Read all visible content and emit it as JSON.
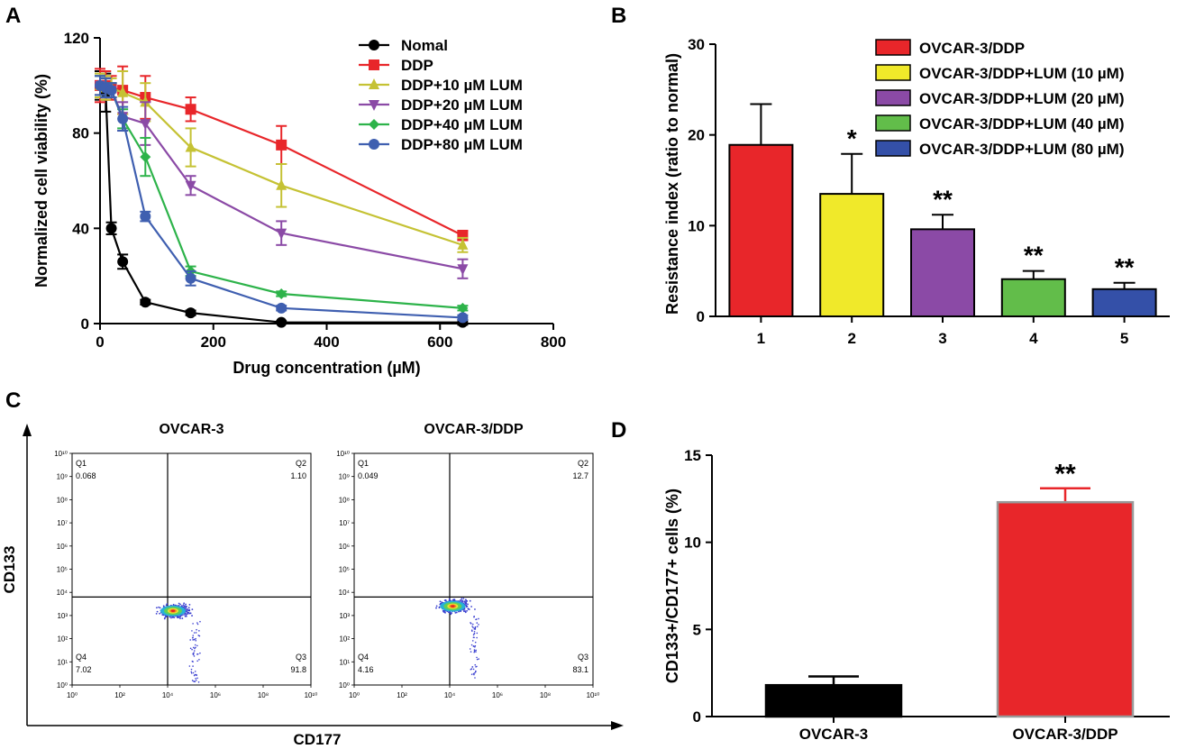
{
  "panels": {
    "A": {
      "letter": "A"
    },
    "B": {
      "letter": "B"
    },
    "C": {
      "letter": "C"
    },
    "D": {
      "letter": "D"
    }
  },
  "chart_data": [
    {
      "id": "A",
      "type": "line",
      "title": "",
      "xlabel": "Drug concentration (µM)",
      "ylabel": "Normalized cell viability (%)",
      "xlim": [
        0,
        800
      ],
      "ylim": [
        0,
        120
      ],
      "xticks": [
        0,
        200,
        400,
        600,
        800
      ],
      "yticks": [
        0,
        40,
        80,
        120
      ],
      "legend_position": "top-right",
      "series": [
        {
          "name": "Nomal",
          "color": "#000000",
          "marker": "circle",
          "x": [
            0,
            10,
            20,
            40,
            80,
            160,
            320,
            640
          ],
          "y": [
            100,
            97,
            40,
            26,
            9,
            4.5,
            0.5,
            0.5
          ],
          "err": [
            6,
            8,
            2.5,
            3,
            1,
            1,
            0.5,
            1
          ]
        },
        {
          "name": "DDP",
          "color": "#e8262a",
          "marker": "square",
          "x": [
            0,
            10,
            20,
            40,
            80,
            160,
            320,
            640
          ],
          "y": [
            100,
            100,
            99,
            98,
            95,
            90,
            75,
            37
          ],
          "err": [
            7,
            6,
            5,
            10,
            9,
            5,
            8,
            2
          ]
        },
        {
          "name": "DDP+10 µM LUM",
          "color": "#c5c234",
          "marker": "triangle-up",
          "x": [
            0,
            10,
            20,
            40,
            80,
            160,
            320,
            640
          ],
          "y": [
            100,
            99,
            99,
            97,
            93,
            74,
            58,
            33
          ],
          "err": [
            5,
            5,
            4,
            9,
            8,
            8,
            9,
            3
          ]
        },
        {
          "name": "DDP+20 µM LUM",
          "color": "#8b4aa6",
          "marker": "triangle-down",
          "x": [
            0,
            10,
            20,
            40,
            80,
            160,
            320,
            640
          ],
          "y": [
            100,
            99,
            98,
            87,
            84,
            58,
            38,
            23
          ],
          "err": [
            4,
            4,
            3,
            6,
            9,
            4,
            5,
            4
          ]
        },
        {
          "name": "DDP+40 µM LUM",
          "color": "#2db34a",
          "marker": "diamond",
          "x": [
            0,
            10,
            20,
            40,
            80,
            160,
            320,
            640
          ],
          "y": [
            100,
            99,
            98,
            86,
            70,
            22,
            12.5,
            6.5
          ],
          "err": [
            4,
            4,
            3,
            4,
            8,
            2,
            1,
            1
          ]
        },
        {
          "name": "DDP+80 µM LUM",
          "color": "#3f5fb0",
          "marker": "circle",
          "x": [
            0,
            10,
            20,
            40,
            80,
            160,
            320,
            640
          ],
          "y": [
            100,
            99,
            98,
            86,
            45,
            19,
            6.5,
            2.5
          ],
          "err": [
            4,
            4,
            3,
            5,
            2,
            3,
            1,
            1
          ]
        }
      ]
    },
    {
      "id": "B",
      "type": "bar",
      "title": "",
      "xlabel": "",
      "ylabel": "Resistance index (ratio to normal)",
      "ylim": [
        0,
        30
      ],
      "yticks": [
        0,
        10,
        20,
        30
      ],
      "categories": [
        "1",
        "2",
        "3",
        "4",
        "5"
      ],
      "values": [
        18.9,
        13.5,
        9.6,
        4.1,
        3.0
      ],
      "errors": [
        4.5,
        4.4,
        1.6,
        0.9,
        0.7
      ],
      "colors": [
        "#e8262a",
        "#f0e92a",
        "#8b4aa6",
        "#62bd4a",
        "#3450a8"
      ],
      "annotations": [
        "",
        "*",
        "**",
        "**",
        "**"
      ],
      "legend_position": "top-right",
      "legend": [
        "OVCAR-3/DDP",
        "OVCAR-3/DDP+LUM (10 µM)",
        "OVCAR-3/DDP+LUM (20 µM)",
        "OVCAR-3/DDP+LUM (40 µM)",
        "OVCAR-3/DDP+LUM (80 µM)"
      ]
    },
    {
      "id": "C",
      "type": "scatter",
      "xlabel": "CD177",
      "ylabel": "CD133",
      "axis_tick_labels": [
        "10⁰",
        "10¹",
        "10²",
        "10³",
        "10⁴",
        "10⁵",
        "10⁶",
        "10⁷",
        "10⁸",
        "10⁹",
        "10¹⁰"
      ],
      "x_tick_labels": [
        "10⁰",
        "10²",
        "10⁴",
        "10⁶",
        "10⁸",
        "10¹⁰"
      ],
      "plots": [
        {
          "title": "OVCAR-3",
          "quadrants": {
            "Q1": "0.068",
            "Q2": "1.10",
            "Q3": "91.8",
            "Q4": "7.02"
          },
          "gate_x_log": 4.0,
          "gate_y_log": 3.8,
          "cluster_center_log": [
            4.0,
            3.2
          ]
        },
        {
          "title": "OVCAR-3/DDP",
          "quadrants": {
            "Q1": "0.049",
            "Q2": "12.7",
            "Q3": "83.1",
            "Q4": "4.16"
          },
          "gate_x_log": 4.0,
          "gate_y_log": 3.8,
          "cluster_center_log": [
            3.9,
            3.4
          ]
        }
      ]
    },
    {
      "id": "D",
      "type": "bar",
      "xlabel": "",
      "ylabel": "CD133+/CD177+ cells (%)",
      "ylim": [
        0,
        15
      ],
      "yticks": [
        0,
        5,
        10,
        15
      ],
      "categories": [
        "OVCAR-3",
        "OVCAR-3/DDP"
      ],
      "values": [
        1.8,
        12.3
      ],
      "errors": [
        0.5,
        0.8
      ],
      "colors": [
        "#000000",
        "#e8262a"
      ],
      "annotations": [
        "",
        "**"
      ]
    }
  ]
}
